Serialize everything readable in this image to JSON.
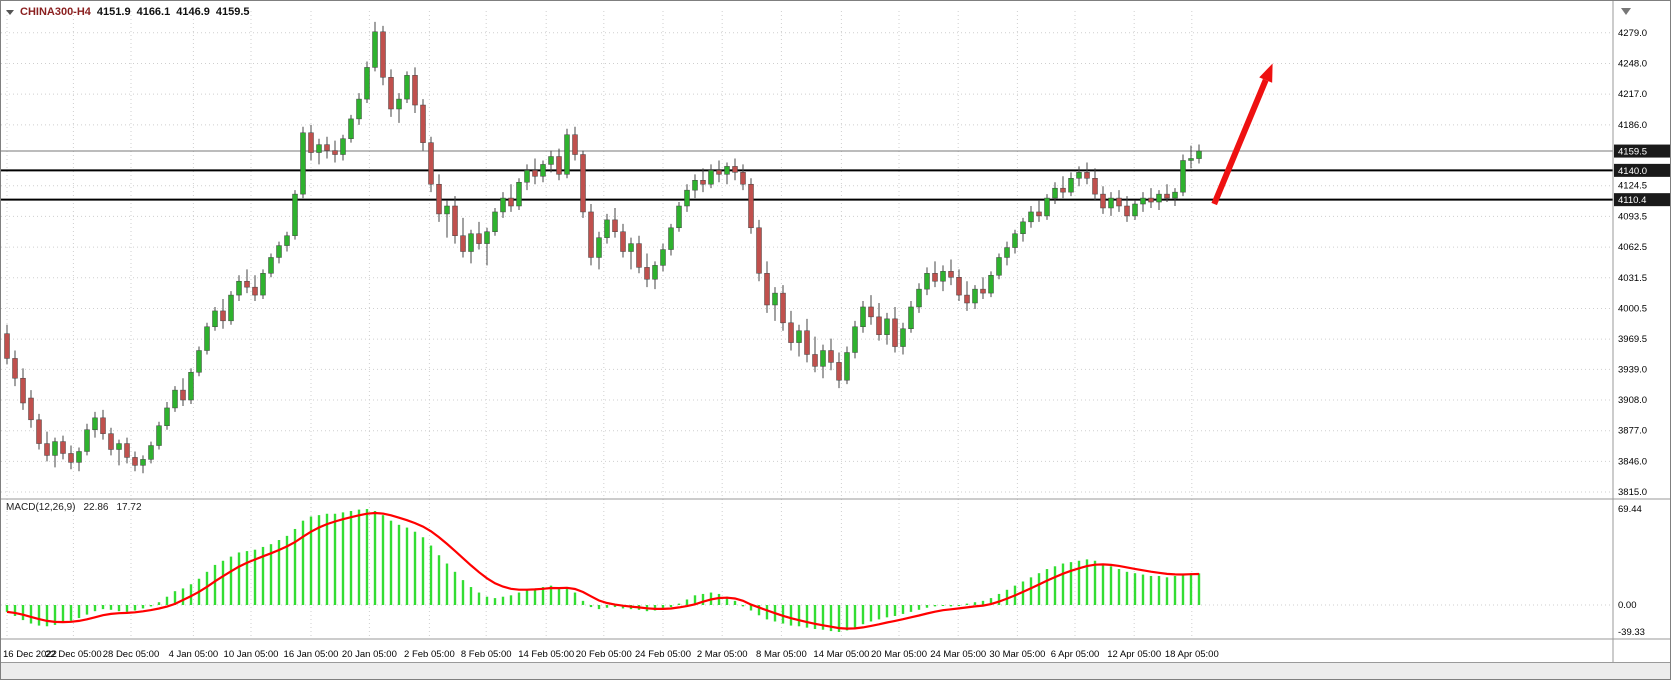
{
  "symbol_bar": {
    "symbol": "CHINA300-H4",
    "open": "4151.9",
    "high": "4166.1",
    "low": "4146.9",
    "close": "4159.5"
  },
  "macd_bar": {
    "label": "MACD(12,26,9)",
    "value": "22.86",
    "signal": "17.72"
  },
  "chart_data": {
    "type": "candlestick",
    "title": "CHINA300-H4",
    "timeframe": "H4",
    "colors": {
      "bull": "#2eb22e",
      "bear": "#c0504d",
      "wick": "#444444",
      "grid": "#cfcfcf",
      "level_line": "#000000",
      "current_line": "#7a7a7a",
      "hist": "#33dd33",
      "signal": "#ff0000",
      "arrow": "#ee1111",
      "badge_bg": "#1a1a1a",
      "badge_text": "#ffffff",
      "axis_text": "#000000",
      "separator": "#9a9a9a"
    },
    "price_axis": {
      "range": [
        3809,
        4301
      ],
      "ticks": [
        4279.0,
        4248.0,
        4217.0,
        4186.0,
        4124.5,
        4093.5,
        4062.5,
        4031.5,
        4000.5,
        3969.5,
        3939.0,
        3908.0,
        3877.0,
        3846.0,
        3815.0
      ]
    },
    "time_axis": {
      "ticks": [
        {
          "label": "16 Dec 2022",
          "i": 0
        },
        {
          "label": "22 Dec 05:00",
          "i": 8.3
        },
        {
          "label": "28 Dec 05:00",
          "i": 15.5
        },
        {
          "label": "4 Jan 05:00",
          "i": 23.3
        },
        {
          "label": "10 Jan 05:00",
          "i": 30.5
        },
        {
          "label": "16 Jan 05:00",
          "i": 38
        },
        {
          "label": "20 Jan 05:00",
          "i": 45.3
        },
        {
          "label": "2 Feb 05:00",
          "i": 52.8
        },
        {
          "label": "8 Feb 05:00",
          "i": 59.9
        },
        {
          "label": "14 Feb 05:00",
          "i": 67.4
        },
        {
          "label": "20 Feb 05:00",
          "i": 74.6
        },
        {
          "label": "24 Feb 05:00",
          "i": 82
        },
        {
          "label": "2 Mar 05:00",
          "i": 89.4
        },
        {
          "label": "8 Mar 05:00",
          "i": 96.8
        },
        {
          "label": "14 Mar 05:00",
          "i": 104.3
        },
        {
          "label": "20 Mar 05:00",
          "i": 111.5
        },
        {
          "label": "24 Mar 05:00",
          "i": 118.9
        },
        {
          "label": "30 Mar 05:00",
          "i": 126.3
        },
        {
          "label": "6 Apr 05:00",
          "i": 133.5
        },
        {
          "label": "12 Apr 05:00",
          "i": 140.9
        },
        {
          "label": "18 Apr 05:00",
          "i": 148.1
        }
      ]
    },
    "levels": [
      {
        "price": 4140.0,
        "label": "4140.0"
      },
      {
        "price": 4110.4,
        "label": "4110.4"
      }
    ],
    "current_price": {
      "price": 4159.5,
      "label": "4159.5"
    },
    "arrow": {
      "from_i": 150.9,
      "from_price": 4106,
      "to_i": 158.2,
      "to_price": 4248
    },
    "candles": [
      [
        3975,
        3984,
        3944,
        3950
      ],
      [
        3950,
        3958,
        3922,
        3930
      ],
      [
        3930,
        3940,
        3898,
        3905
      ],
      [
        3910,
        3918,
        3880,
        3888
      ],
      [
        3888,
        3894,
        3858,
        3864
      ],
      [
        3864,
        3876,
        3846,
        3852
      ],
      [
        3852,
        3870,
        3840,
        3866
      ],
      [
        3866,
        3872,
        3848,
        3854
      ],
      [
        3854,
        3862,
        3838,
        3845
      ],
      [
        3845,
        3860,
        3836,
        3856
      ],
      [
        3856,
        3884,
        3852,
        3878
      ],
      [
        3878,
        3896,
        3870,
        3890
      ],
      [
        3890,
        3898,
        3868,
        3874
      ],
      [
        3874,
        3880,
        3852,
        3858
      ],
      [
        3858,
        3868,
        3842,
        3864
      ],
      [
        3864,
        3870,
        3844,
        3850
      ],
      [
        3850,
        3856,
        3836,
        3842
      ],
      [
        3842,
        3852,
        3834,
        3848
      ],
      [
        3848,
        3866,
        3844,
        3862
      ],
      [
        3862,
        3886,
        3858,
        3882
      ],
      [
        3882,
        3906,
        3878,
        3900
      ],
      [
        3900,
        3922,
        3896,
        3918
      ],
      [
        3918,
        3930,
        3902,
        3908
      ],
      [
        3908,
        3940,
        3904,
        3936
      ],
      [
        3936,
        3962,
        3932,
        3958
      ],
      [
        3958,
        3986,
        3954,
        3982
      ],
      [
        3982,
        4002,
        3978,
        3998
      ],
      [
        3998,
        4010,
        3980,
        3988
      ],
      [
        3988,
        4018,
        3984,
        4014
      ],
      [
        4014,
        4034,
        4008,
        4028
      ],
      [
        4028,
        4040,
        4016,
        4022
      ],
      [
        4022,
        4034,
        4008,
        4014
      ],
      [
        4014,
        4040,
        4010,
        4036
      ],
      [
        4036,
        4056,
        4032,
        4052
      ],
      [
        4052,
        4068,
        4046,
        4064
      ],
      [
        4064,
        4078,
        4058,
        4074
      ],
      [
        4074,
        4120,
        4070,
        4116
      ],
      [
        4116,
        4184,
        4112,
        4178
      ],
      [
        4178,
        4186,
        4150,
        4158
      ],
      [
        4158,
        4172,
        4146,
        4166
      ],
      [
        4166,
        4174,
        4152,
        4160
      ],
      [
        4160,
        4170,
        4148,
        4156
      ],
      [
        4156,
        4176,
        4150,
        4172
      ],
      [
        4172,
        4196,
        4168,
        4192
      ],
      [
        4192,
        4218,
        4186,
        4212
      ],
      [
        4212,
        4250,
        4208,
        4244
      ],
      [
        4244,
        4290,
        4240,
        4280
      ],
      [
        4280,
        4286,
        4226,
        4234
      ],
      [
        4234,
        4242,
        4194,
        4202
      ],
      [
        4202,
        4218,
        4188,
        4212
      ],
      [
        4212,
        4240,
        4208,
        4236
      ],
      [
        4236,
        4244,
        4198,
        4206
      ],
      [
        4206,
        4212,
        4160,
        4168
      ],
      [
        4168,
        4174,
        4118,
        4126
      ],
      [
        4126,
        4136,
        4088,
        4096
      ],
      [
        4096,
        4110,
        4072,
        4104
      ],
      [
        4104,
        4114,
        4066,
        4074
      ],
      [
        4074,
        4092,
        4052,
        4058
      ],
      [
        4058,
        4080,
        4046,
        4076
      ],
      [
        4076,
        4088,
        4060,
        4066
      ],
      [
        4066,
        4082,
        4044,
        4078
      ],
      [
        4078,
        4102,
        4074,
        4098
      ],
      [
        4098,
        4118,
        4092,
        4112
      ],
      [
        4112,
        4126,
        4098,
        4104
      ],
      [
        4104,
        4132,
        4100,
        4128
      ],
      [
        4128,
        4146,
        4120,
        4140
      ],
      [
        4140,
        4152,
        4126,
        4134
      ],
      [
        4134,
        4150,
        4128,
        4146
      ],
      [
        4146,
        4160,
        4138,
        4154
      ],
      [
        4154,
        4162,
        4130,
        4136
      ],
      [
        4136,
        4182,
        4132,
        4176
      ],
      [
        4176,
        4184,
        4150,
        4156
      ],
      [
        4156,
        4160,
        4092,
        4098
      ],
      [
        4098,
        4106,
        4044,
        4052
      ],
      [
        4052,
        4078,
        4040,
        4072
      ],
      [
        4072,
        4096,
        4066,
        4090
      ],
      [
        4090,
        4102,
        4072,
        4078
      ],
      [
        4078,
        4086,
        4052,
        4058
      ],
      [
        4058,
        4072,
        4040,
        4066
      ],
      [
        4066,
        4074,
        4036,
        4042
      ],
      [
        4042,
        4056,
        4022,
        4030
      ],
      [
        4030,
        4048,
        4020,
        4044
      ],
      [
        4044,
        4066,
        4038,
        4060
      ],
      [
        4060,
        4086,
        4054,
        4082
      ],
      [
        4082,
        4108,
        4078,
        4104
      ],
      [
        4104,
        4126,
        4098,
        4120
      ],
      [
        4120,
        4136,
        4112,
        4130
      ],
      [
        4130,
        4142,
        4118,
        4126
      ],
      [
        4126,
        4146,
        4122,
        4140
      ],
      [
        4140,
        4150,
        4128,
        4136
      ],
      [
        4136,
        4148,
        4126,
        4144
      ],
      [
        4144,
        4152,
        4130,
        4138
      ],
      [
        4138,
        4146,
        4120,
        4126
      ],
      [
        4126,
        4132,
        4076,
        4082
      ],
      [
        4082,
        4090,
        4028,
        4036
      ],
      [
        4036,
        4048,
        3996,
        4004
      ],
      [
        4004,
        4022,
        3988,
        4016
      ],
      [
        4016,
        4024,
        3978,
        3986
      ],
      [
        3986,
        3998,
        3958,
        3966
      ],
      [
        3966,
        3984,
        3952,
        3978
      ],
      [
        3978,
        3990,
        3946,
        3954
      ],
      [
        3954,
        3972,
        3936,
        3942
      ],
      [
        3942,
        3964,
        3930,
        3958
      ],
      [
        3958,
        3970,
        3938,
        3946
      ],
      [
        3946,
        3956,
        3920,
        3928
      ],
      [
        3928,
        3962,
        3924,
        3956
      ],
      [
        3956,
        3988,
        3950,
        3982
      ],
      [
        3982,
        4008,
        3976,
        4002
      ],
      [
        4002,
        4014,
        3984,
        3992
      ],
      [
        3992,
        4006,
        3968,
        3974
      ],
      [
        3974,
        3996,
        3964,
        3990
      ],
      [
        3990,
        4002,
        3956,
        3962
      ],
      [
        3962,
        3986,
        3954,
        3980
      ],
      [
        3980,
        4008,
        3976,
        4002
      ],
      [
        4002,
        4026,
        3996,
        4020
      ],
      [
        4020,
        4042,
        4014,
        4036
      ],
      [
        4036,
        4048,
        4022,
        4028
      ],
      [
        4028,
        4044,
        4018,
        4038
      ],
      [
        4038,
        4050,
        4024,
        4032
      ],
      [
        4032,
        4040,
        4008,
        4014
      ],
      [
        4014,
        4028,
        3998,
        4006
      ],
      [
        4006,
        4024,
        4000,
        4020
      ],
      [
        4020,
        4032,
        4010,
        4016
      ],
      [
        4016,
        4038,
        4012,
        4034
      ],
      [
        4034,
        4056,
        4030,
        4052
      ],
      [
        4052,
        4068,
        4044,
        4062
      ],
      [
        4062,
        4080,
        4056,
        4076
      ],
      [
        4076,
        4092,
        4068,
        4088
      ],
      [
        4088,
        4104,
        4082,
        4098
      ],
      [
        4098,
        4110,
        4088,
        4094
      ],
      [
        4094,
        4116,
        4090,
        4112
      ],
      [
        4112,
        4128,
        4106,
        4122
      ],
      [
        4122,
        4134,
        4112,
        4118
      ],
      [
        4118,
        4138,
        4114,
        4132
      ],
      [
        4132,
        4144,
        4124,
        4138
      ],
      [
        4138,
        4148,
        4126,
        4132
      ],
      [
        4132,
        4142,
        4110,
        4116
      ],
      [
        4116,
        4124,
        4096,
        4102
      ],
      [
        4102,
        4118,
        4094,
        4112
      ],
      [
        4112,
        4120,
        4098,
        4104
      ],
      [
        4104,
        4114,
        4088,
        4094
      ],
      [
        4094,
        4110,
        4090,
        4106
      ],
      [
        4106,
        4118,
        4098,
        4112
      ],
      [
        4112,
        4122,
        4102,
        4108
      ],
      [
        4108,
        4120,
        4100,
        4116
      ],
      [
        4116,
        4126,
        4108,
        4112
      ],
      [
        4112,
        4122,
        4104,
        4118
      ],
      [
        4118,
        4156,
        4114,
        4150
      ],
      [
        4150,
        4165,
        4142,
        4152
      ],
      [
        4151.9,
        4166.1,
        4146.9,
        4159.5
      ]
    ],
    "macd": {
      "label": "MACD(12,26,9)",
      "current_value": 22.86,
      "current_signal": 17.72,
      "range": [
        -39.33,
        69.44
      ],
      "y_ticks": [
        {
          "label": "69.44",
          "v": 69.44
        },
        {
          "label": "0.00",
          "v": 0
        },
        {
          "label": "-39.33",
          "v": -39.33
        }
      ],
      "hist": [
        -10,
        -16,
        -22,
        -27,
        -30,
        -31,
        -29,
        -26,
        -23,
        -19,
        -14,
        -9,
        -6,
        -7,
        -9,
        -10,
        -8,
        -5,
        -2,
        2,
        6,
        10,
        12,
        15,
        19,
        24,
        29,
        32,
        35,
        38,
        39,
        40,
        42,
        44,
        47,
        50,
        55,
        61,
        64,
        65,
        66,
        66,
        67,
        68,
        69,
        69.4,
        68,
        65,
        61,
        58,
        56,
        53,
        49,
        43,
        36,
        30,
        24,
        18,
        13,
        9,
        6,
        5,
        6,
        7,
        9,
        11,
        12,
        13,
        14,
        12,
        13,
        9,
        3,
        -3,
        -6,
        -4,
        -3,
        -5,
        -6,
        -7,
        -9,
        -8,
        -6,
        -3,
        1,
        4,
        7,
        8,
        9,
        8,
        6,
        3,
        -2,
        -8,
        -15,
        -21,
        -24,
        -27,
        -30,
        -31,
        -33,
        -35,
        -36,
        -38,
        -39.3,
        -37,
        -33,
        -28,
        -24,
        -21,
        -18,
        -16,
        -13,
        -10,
        -7,
        -4,
        -2,
        -1,
        -2,
        -1,
        1,
        2,
        3,
        5,
        8,
        11,
        14,
        17,
        20,
        23,
        26,
        28,
        30,
        31,
        32,
        33,
        32,
        30,
        28,
        26,
        24,
        23,
        22,
        21,
        21,
        20,
        21,
        22,
        23,
        22.86
      ]
    }
  }
}
